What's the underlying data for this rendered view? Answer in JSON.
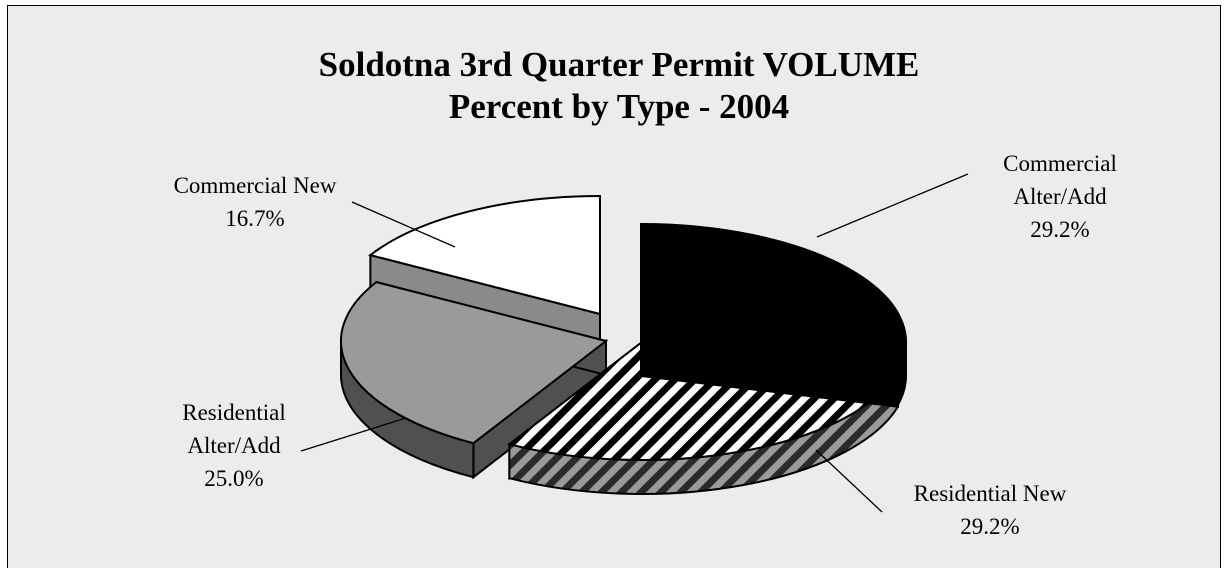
{
  "chart_data": {
    "type": "pie",
    "title": "Soldotna 3rd Quarter Permit VOLUME",
    "subtitle": "Percent by Type - 2004",
    "slices": [
      {
        "label_lines": [
          "Commercial",
          "Alter/Add"
        ],
        "value": 29.2,
        "value_text": "29.2%",
        "fill": "#000000",
        "side": "#000000",
        "pattern": "solid"
      },
      {
        "label_lines": [
          "Residential New"
        ],
        "value": 29.2,
        "value_text": "29.2%",
        "fill": "#ffffff",
        "side": "#5a5a5a",
        "pattern": "diagonal-stripes"
      },
      {
        "label_lines": [
          "Residential",
          "Alter/Add"
        ],
        "value": 25.0,
        "value_text": "25.0%",
        "fill": "#9a9a9a",
        "side": "#505050",
        "pattern": "solid"
      },
      {
        "label_lines": [
          "Commercial New"
        ],
        "value": 16.7,
        "value_text": "16.7%",
        "fill": "#ffffff",
        "side": "#8a8a8a",
        "pattern": "solid"
      }
    ],
    "legend": "none",
    "exploded": true,
    "style": "3d"
  }
}
